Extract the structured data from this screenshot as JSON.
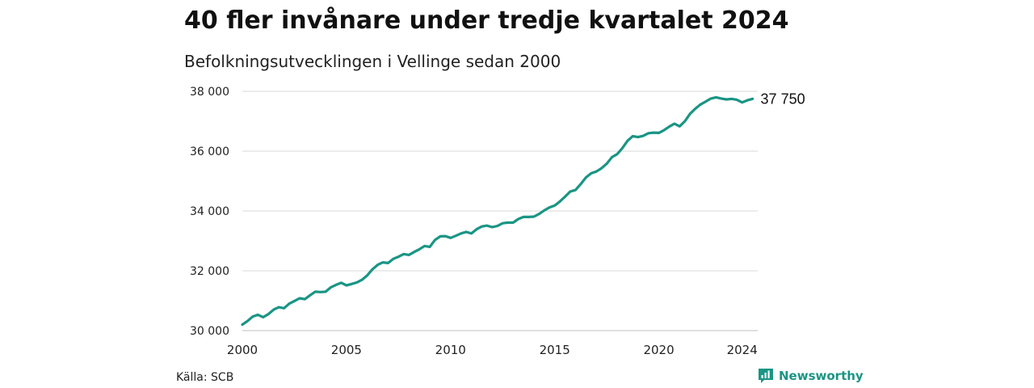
{
  "header": {
    "title": "40 fler invånare under tredje kvartalet 2024",
    "subtitle": "Befolkningsutvecklingen i Vellinge sedan 2000"
  },
  "footer": {
    "source": "Källa: SCB",
    "brand": "Newsworthy",
    "brand_icon": "newsworthy-logo-icon",
    "brand_color": "#1a9585"
  },
  "chart_data": {
    "type": "line",
    "title": "40 fler invånare under tredje kvartalet 2024",
    "subtitle": "Befolkningsutvecklingen i Vellinge sedan 2000",
    "xlabel": "",
    "ylabel": "",
    "xlim": [
      2000,
      2024.75
    ],
    "ylim": [
      30000,
      38000
    ],
    "x_ticks": [
      2000,
      2005,
      2010,
      2015,
      2020,
      2024
    ],
    "y_ticks": [
      30000,
      32000,
      34000,
      36000,
      38000
    ],
    "x_tick_labels": [
      "2000",
      "2005",
      "2010",
      "2015",
      "2020",
      "2024"
    ],
    "y_tick_labels": [
      "30 000",
      "32 000",
      "34 000",
      "36 000",
      "38 000"
    ],
    "grid": "horizontal",
    "line_color": "#1a9585",
    "end_label": "37 750",
    "series": [
      {
        "x": [
          2000,
          2000.25,
          2000.5,
          2000.75,
          2001,
          2001.25,
          2001.5,
          2001.75,
          2002,
          2002.25,
          2002.5,
          2002.75,
          2003,
          2003.25,
          2003.5,
          2003.75,
          2004,
          2004.25,
          2004.5,
          2004.75,
          2005,
          2005.25,
          2005.5,
          2005.75,
          2006,
          2006.25,
          2006.5,
          2006.75,
          2007,
          2007.25,
          2007.5,
          2007.75,
          2008,
          2008.25,
          2008.5,
          2008.75,
          2009,
          2009.25,
          2009.5,
          2009.75,
          2010,
          2010.25,
          2010.5,
          2010.75,
          2011,
          2011.25,
          2011.5,
          2011.75,
          2012,
          2012.25,
          2012.5,
          2012.75,
          2013,
          2013.25,
          2013.5,
          2013.75,
          2014,
          2014.25,
          2014.5,
          2014.75,
          2015,
          2015.25,
          2015.5,
          2015.75,
          2016,
          2016.25,
          2016.5,
          2016.75,
          2017,
          2017.25,
          2017.5,
          2017.75,
          2018,
          2018.25,
          2018.5,
          2018.75,
          2019,
          2019.25,
          2019.5,
          2019.75,
          2020,
          2020.25,
          2020.5,
          2020.75,
          2021,
          2021.25,
          2021.5,
          2021.75,
          2022,
          2022.25,
          2022.5,
          2022.75,
          2023,
          2023.25,
          2023.5,
          2023.75,
          2024,
          2024.25,
          2024.5
        ],
        "values": [
          30200,
          30320,
          30470,
          30530,
          30450,
          30550,
          30700,
          30780,
          30750,
          30900,
          30990,
          31080,
          31050,
          31180,
          31300,
          31290,
          31300,
          31450,
          31530,
          31600,
          31510,
          31560,
          31610,
          31700,
          31850,
          32050,
          32200,
          32280,
          32260,
          32400,
          32470,
          32560,
          32530,
          32630,
          32720,
          32830,
          32800,
          33030,
          33150,
          33160,
          33100,
          33170,
          33250,
          33300,
          33250,
          33390,
          33480,
          33510,
          33460,
          33500,
          33590,
          33610,
          33610,
          33730,
          33800,
          33800,
          33810,
          33900,
          34020,
          34120,
          34180,
          34320,
          34480,
          34650,
          34700,
          34900,
          35120,
          35260,
          35320,
          35430,
          35580,
          35800,
          35900,
          36100,
          36350,
          36500,
          36470,
          36510,
          36600,
          36620,
          36610,
          36700,
          36820,
          36920,
          36830,
          37000,
          37250,
          37420,
          37560,
          37660,
          37760,
          37800,
          37760,
          37730,
          37750,
          37720,
          37630,
          37700,
          37750
        ]
      }
    ]
  }
}
